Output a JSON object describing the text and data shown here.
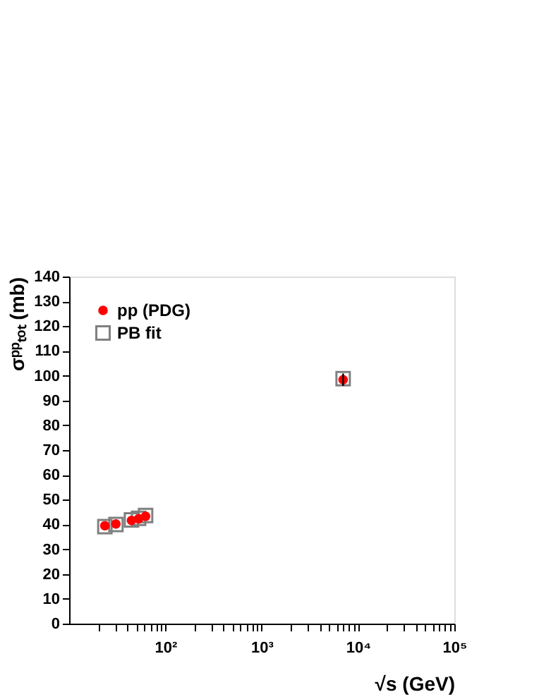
{
  "chart_data": {
    "type": "scatter",
    "xlabel": "√s (GeV)",
    "ylabel": "σᵖᵖₜₒₜ (mb)",
    "x": [
      23.5,
      30.6,
      44.4,
      52.6,
      62.2,
      7000
    ],
    "series": [
      {
        "name": "pp (PDG)",
        "color": "#ff0000",
        "marker": "circle",
        "values": [
          39.5,
          40.2,
          41.6,
          42.3,
          43.3,
          98.4
        ],
        "errors": [
          null,
          null,
          null,
          null,
          null,
          2.5
        ]
      },
      {
        "name": "PB fit",
        "color": "#808080",
        "marker": "square",
        "values": [
          39.1,
          40.0,
          41.8,
          42.5,
          43.6,
          98.8
        ]
      }
    ],
    "log": "x",
    "xlim": [
      10,
      100000
    ],
    "ylim": [
      0,
      140
    ],
    "xticks": [
      {
        "value": 20,
        "label": null
      },
      {
        "value": 30,
        "label": null
      },
      {
        "value": 40,
        "label": null
      },
      {
        "value": 50,
        "label": null
      },
      {
        "value": 60,
        "label": null
      },
      {
        "value": 70,
        "label": null
      },
      {
        "value": 80,
        "label": null
      },
      {
        "value": 90,
        "label": null
      },
      {
        "value": 100,
        "label": "10²"
      },
      {
        "value": 200,
        "label": null
      },
      {
        "value": 300,
        "label": null
      },
      {
        "value": 400,
        "label": null
      },
      {
        "value": 500,
        "label": null
      },
      {
        "value": 600,
        "label": null
      },
      {
        "value": 700,
        "label": null
      },
      {
        "value": 800,
        "label": null
      },
      {
        "value": 900,
        "label": null
      },
      {
        "value": 1000,
        "label": "10³"
      },
      {
        "value": 2000,
        "label": null
      },
      {
        "value": 3000,
        "label": null
      },
      {
        "value": 4000,
        "label": null
      },
      {
        "value": 5000,
        "label": null
      },
      {
        "value": 6000,
        "label": null
      },
      {
        "value": 7000,
        "label": null
      },
      {
        "value": 8000,
        "label": null
      },
      {
        "value": 9000,
        "label": null
      },
      {
        "value": 10000,
        "label": "10⁴"
      },
      {
        "value": 20000,
        "label": null
      },
      {
        "value": 30000,
        "label": null
      },
      {
        "value": 40000,
        "label": null
      },
      {
        "value": 50000,
        "label": null
      },
      {
        "value": 60000,
        "label": null
      },
      {
        "value": 70000,
        "label": null
      },
      {
        "value": 80000,
        "label": null
      },
      {
        "value": 90000,
        "label": null
      },
      {
        "value": 100000,
        "label": "10⁵"
      }
    ],
    "yticks": [
      0,
      10,
      20,
      30,
      40,
      50,
      60,
      70,
      80,
      90,
      100,
      110,
      120,
      130,
      140
    ],
    "legend": "top left",
    "grid": false
  }
}
